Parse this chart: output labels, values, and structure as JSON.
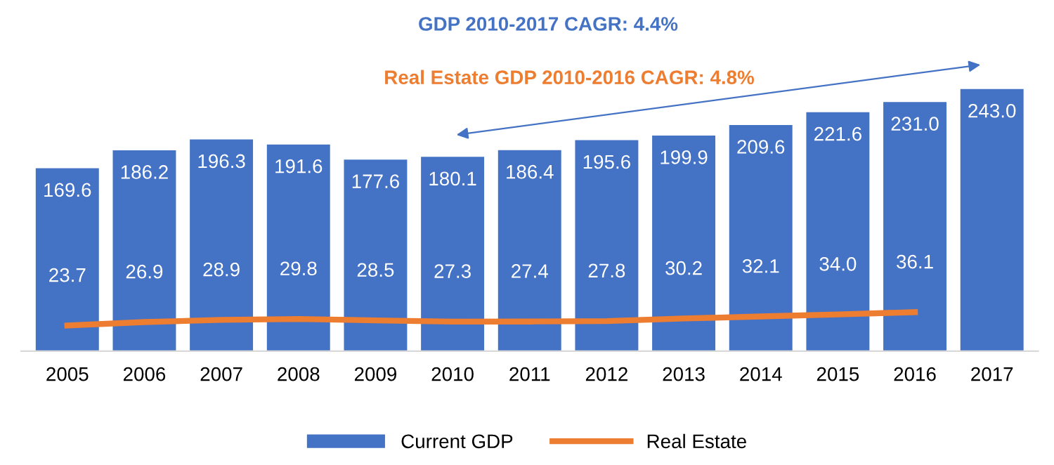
{
  "chart_data": {
    "type": "bar",
    "categories": [
      "2005",
      "2006",
      "2007",
      "2008",
      "2009",
      "2010",
      "2011",
      "2012",
      "2013",
      "2014",
      "2015",
      "2016",
      "2017"
    ],
    "series": [
      {
        "name": "Current GDP",
        "color": "#4472c4",
        "values": [
          169.6,
          186.2,
          196.3,
          191.6,
          177.6,
          180.1,
          186.4,
          195.6,
          199.9,
          209.6,
          221.6,
          231.0,
          243.0
        ],
        "value_labels": [
          "169.6",
          "186.2",
          "196.3",
          "191.6",
          "177.6",
          "180.1",
          "186.4",
          "195.6",
          "199.9",
          "209.6",
          "221.6",
          "231.0",
          "243.0"
        ]
      },
      {
        "name": "Real Estate",
        "type": "line",
        "color": "#ed7d31",
        "values": [
          23.7,
          26.9,
          28.9,
          29.8,
          28.5,
          27.3,
          27.4,
          27.8,
          30.2,
          32.1,
          34.0,
          36.1,
          null
        ],
        "value_labels": [
          "23.7",
          "26.9",
          "28.9",
          "29.8",
          "28.5",
          "27.3",
          "27.4",
          "27.8",
          "30.2",
          "32.1",
          "34.0",
          "36.1",
          null
        ]
      }
    ],
    "annotations": [
      "GDP 2010-2017 CAGR: 4.4%",
      "Real Estate GDP 2010-2016 CAGR: 4.8%"
    ],
    "tick_labels": "x",
    "grid": false,
    "legend": "bottom",
    "marker": "none",
    "line_style": "solid"
  }
}
